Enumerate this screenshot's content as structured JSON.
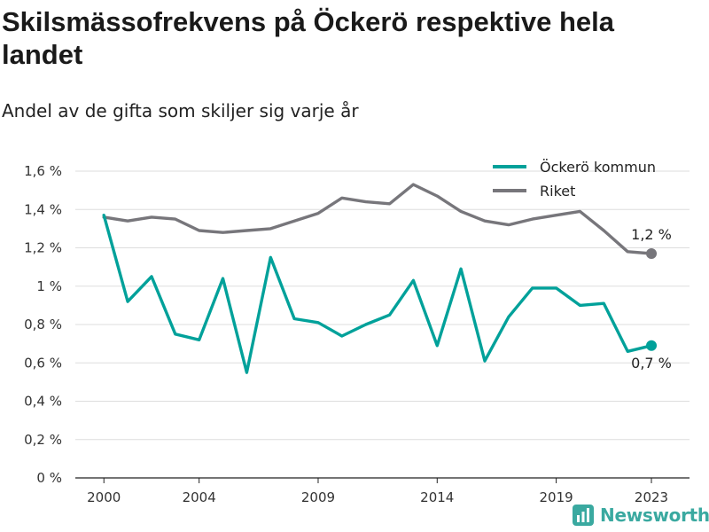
{
  "title": "Skilsmässofrekvens på Öckerö respektive hela landet",
  "subtitle": "Andel av de gifta som skiljer sig varje år",
  "logo_text": "Newsworthy",
  "chart_data": {
    "type": "line",
    "x": [
      2000,
      2001,
      2002,
      2003,
      2004,
      2005,
      2006,
      2007,
      2008,
      2009,
      2010,
      2011,
      2012,
      2013,
      2014,
      2015,
      2016,
      2017,
      2018,
      2019,
      2020,
      2021,
      2022,
      2023
    ],
    "xticks": [
      2000,
      2004,
      2009,
      2014,
      2019,
      2023
    ],
    "ylim": [
      0,
      1.6
    ],
    "yticks": [
      0,
      0.2,
      0.4,
      0.6,
      0.8,
      1.0,
      1.2,
      1.4,
      1.6
    ],
    "ytick_labels": [
      "0 %",
      "0,2 %",
      "0,4 %",
      "0,6 %",
      "0,8 %",
      "1 %",
      "1,2 %",
      "1,4 %",
      "1,6 %"
    ],
    "grid": true,
    "legend_position": "top-right",
    "series": [
      {
        "name": "Öckerö kommun",
        "color": "#00a19a",
        "values": [
          1.37,
          0.92,
          1.05,
          0.75,
          0.72,
          1.04,
          0.55,
          1.15,
          0.83,
          0.81,
          0.74,
          0.8,
          0.85,
          1.03,
          0.69,
          1.09,
          0.61,
          0.84,
          0.99,
          0.99,
          0.9,
          0.91,
          0.66,
          0.69
        ],
        "end_label": "0,7 %"
      },
      {
        "name": "Riket",
        "color": "#77767b",
        "values": [
          1.36,
          1.34,
          1.36,
          1.35,
          1.29,
          1.28,
          1.29,
          1.3,
          1.34,
          1.38,
          1.46,
          1.44,
          1.43,
          1.53,
          1.47,
          1.39,
          1.34,
          1.32,
          1.35,
          1.37,
          1.39,
          1.29,
          1.18,
          1.17
        ],
        "end_label": "1,2 %"
      }
    ]
  }
}
